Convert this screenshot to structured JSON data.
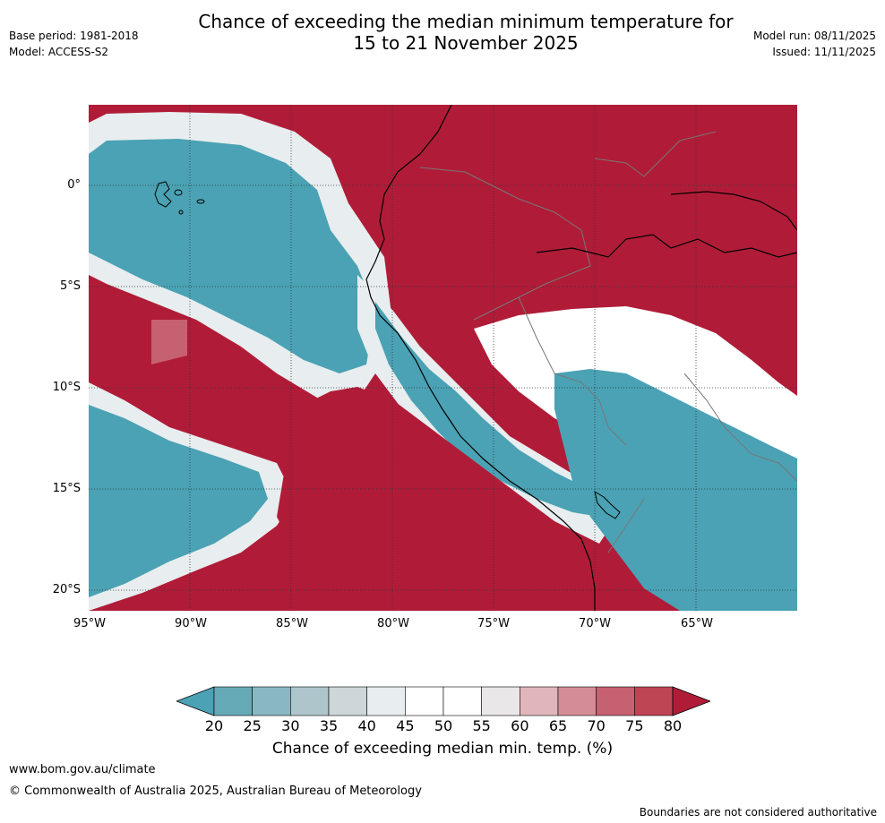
{
  "header": {
    "title_line1": "Chance of exceeding the median minimum temperature for",
    "title_line2": "15 to 21 November 2025",
    "base_period": "Base period: 1981-2018",
    "model": "Model: ACCESS-S2",
    "model_run": "Model run: 08/11/2025",
    "issued": "Issued: 11/11/2025"
  },
  "map": {
    "lat_labels": [
      "0°",
      "5°S",
      "10°S",
      "15°S",
      "20°S"
    ],
    "lon_labels": [
      "95°W",
      "90°W",
      "85°W",
      "80°W",
      "75°W",
      "70°W",
      "65°W"
    ]
  },
  "colorbar": {
    "ticks": [
      "20",
      "25",
      "30",
      "35",
      "40",
      "45",
      "50",
      "55",
      "60",
      "65",
      "70",
      "75",
      "80"
    ],
    "colors": [
      "#4aa2b4",
      "#66a9b7",
      "#89b8c2",
      "#adc5cb",
      "#cdd7da",
      "#e8edef",
      "#ffffff",
      "#ffffff",
      "#e9e7e8",
      "#e0b6bc",
      "#d48d96",
      "#c56170",
      "#be4554",
      "#b01c38"
    ],
    "label": "Chance of exceeding median min. temp. (%)"
  },
  "footer": {
    "url": "www.bom.gov.au/climate",
    "copyright": "© Commonwealth of Australia 2025, Australian Bureau of Meteorology",
    "disclaimer": "Boundaries are not considered authoritative"
  }
}
